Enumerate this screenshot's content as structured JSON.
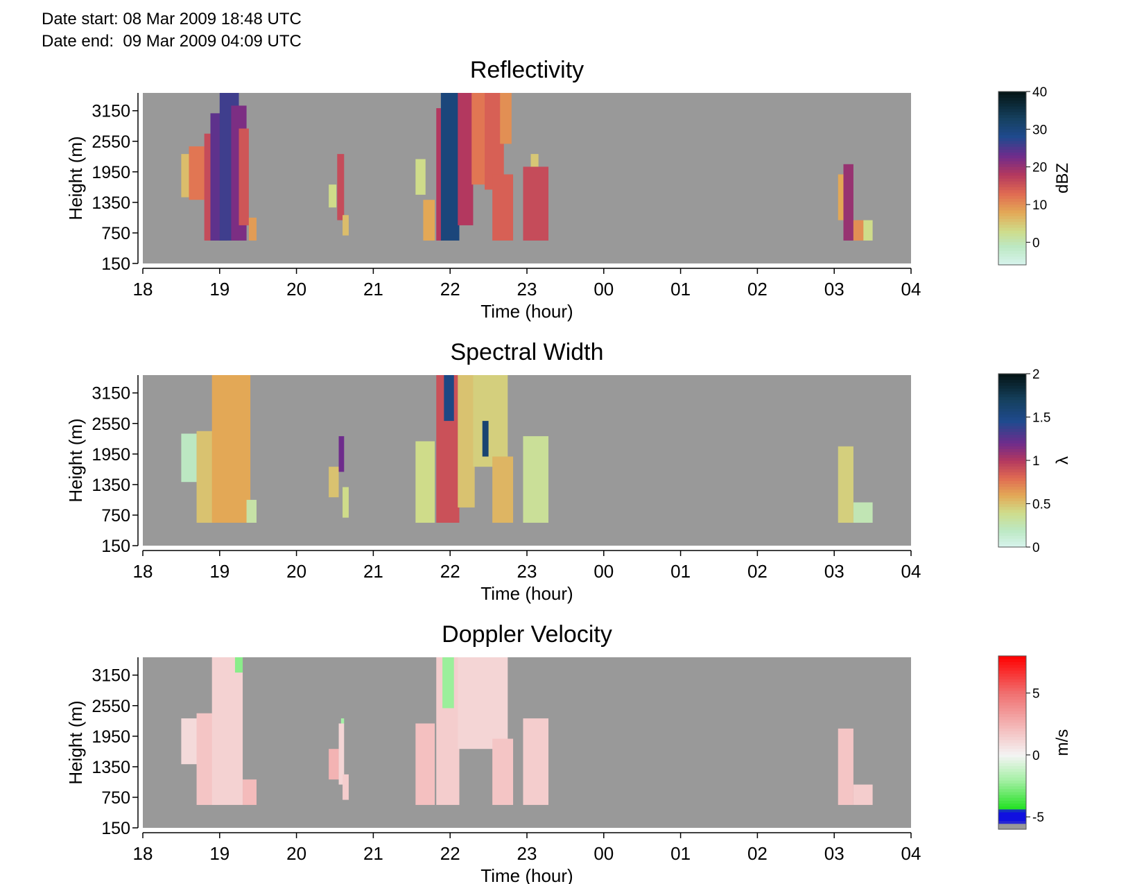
{
  "header": {
    "date_start": "Date start: 08 Mar 2009 18:48 UTC",
    "date_end": "Date end:  09 Mar 2009 04:09 UTC"
  },
  "colors": {
    "background_no_data": "#999999"
  },
  "chart_data": [
    {
      "type": "heatmap",
      "title": "Reflectivity",
      "xlabel": "Time (hour)",
      "ylabel": "Height (m)",
      "x_ticks": [
        "18",
        "19",
        "20",
        "21",
        "22",
        "23",
        "00",
        "01",
        "02",
        "03",
        "04"
      ],
      "y_ticks": [
        "150",
        "750",
        "1350",
        "1950",
        "2550",
        "3150"
      ],
      "y_tick_values": [
        150,
        750,
        1350,
        1950,
        2550,
        3150
      ],
      "xlim": [
        18,
        28
      ],
      "ylim": [
        150,
        3500
      ],
      "colorbar": {
        "label": "dBZ",
        "range": [
          -6,
          40
        ],
        "ticks": [
          "0",
          "10",
          "20",
          "30",
          "40"
        ],
        "tick_values": [
          0,
          10,
          20,
          30,
          40
        ],
        "stops": [
          {
            "v": -6,
            "c": "#d8f4ee"
          },
          {
            "v": -1,
            "c": "#bce8c2"
          },
          {
            "v": 3,
            "c": "#cfdc8a"
          },
          {
            "v": 8,
            "c": "#e3a856"
          },
          {
            "v": 13,
            "c": "#e06a52"
          },
          {
            "v": 18,
            "c": "#b3385f"
          },
          {
            "v": 23,
            "c": "#6e2c8c"
          },
          {
            "v": 28,
            "c": "#1f4a8e"
          },
          {
            "v": 33,
            "c": "#15405e"
          },
          {
            "v": 40,
            "c": "#041414"
          }
        ]
      },
      "cells": [
        {
          "t0": 18.5,
          "t1": 18.65,
          "h0": 1450,
          "h1": 2300,
          "v": 6
        },
        {
          "t0": 18.6,
          "t1": 18.85,
          "h0": 1400,
          "h1": 2450,
          "v": 12
        },
        {
          "t0": 18.8,
          "t1": 18.95,
          "h0": 600,
          "h1": 2700,
          "v": 16
        },
        {
          "t0": 18.88,
          "t1": 19.1,
          "h0": 600,
          "h1": 3100,
          "v": 24
        },
        {
          "t0": 19.0,
          "t1": 19.25,
          "h0": 600,
          "h1": 3500,
          "v": 26
        },
        {
          "t0": 19.15,
          "t1": 19.35,
          "h0": 600,
          "h1": 3250,
          "v": 22
        },
        {
          "t0": 19.25,
          "t1": 19.38,
          "h0": 900,
          "h1": 2800,
          "v": 15
        },
        {
          "t0": 19.38,
          "t1": 19.48,
          "h0": 600,
          "h1": 1050,
          "v": 9
        },
        {
          "t0": 20.42,
          "t1": 20.52,
          "h0": 1250,
          "h1": 1700,
          "v": 3
        },
        {
          "t0": 20.53,
          "t1": 20.62,
          "h0": 1000,
          "h1": 2300,
          "v": 16
        },
        {
          "t0": 20.6,
          "t1": 20.68,
          "h0": 700,
          "h1": 1100,
          "v": 6
        },
        {
          "t0": 21.55,
          "t1": 21.68,
          "h0": 1500,
          "h1": 2200,
          "v": 3
        },
        {
          "t0": 21.65,
          "t1": 21.8,
          "h0": 600,
          "h1": 1400,
          "v": 8
        },
        {
          "t0": 21.82,
          "t1": 21.92,
          "h0": 600,
          "h1": 3200,
          "v": 18
        },
        {
          "t0": 21.88,
          "t1": 22.12,
          "h0": 600,
          "h1": 3500,
          "v": 30
        },
        {
          "t0": 22.1,
          "t1": 22.3,
          "h0": 900,
          "h1": 3500,
          "v": 18
        },
        {
          "t0": 22.28,
          "t1": 22.5,
          "h0": 1700,
          "h1": 3500,
          "v": 12
        },
        {
          "t0": 22.45,
          "t1": 22.7,
          "h0": 1600,
          "h1": 3500,
          "v": 14
        },
        {
          "t0": 22.55,
          "t1": 22.82,
          "h0": 600,
          "h1": 1900,
          "v": 14
        },
        {
          "t0": 22.65,
          "t1": 22.8,
          "h0": 2500,
          "h1": 3500,
          "v": 10
        },
        {
          "t0": 22.95,
          "t1": 23.28,
          "h0": 600,
          "h1": 2050,
          "v": 16
        },
        {
          "t0": 23.05,
          "t1": 23.15,
          "h0": 2050,
          "h1": 2300,
          "v": 5
        },
        {
          "t0": 27.05,
          "t1": 27.15,
          "h0": 1000,
          "h1": 1900,
          "v": 8
        },
        {
          "t0": 27.12,
          "t1": 27.25,
          "h0": 600,
          "h1": 2100,
          "v": 20
        },
        {
          "t0": 27.25,
          "t1": 27.4,
          "h0": 600,
          "h1": 1000,
          "v": 10
        },
        {
          "t0": 27.38,
          "t1": 27.5,
          "h0": 600,
          "h1": 1000,
          "v": 3
        }
      ]
    },
    {
      "type": "heatmap",
      "title": "Spectral Width",
      "xlabel": "Time (hour)",
      "ylabel": "Height (m)",
      "x_ticks": [
        "18",
        "19",
        "20",
        "21",
        "22",
        "23",
        "00",
        "01",
        "02",
        "03",
        "04"
      ],
      "y_ticks": [
        "150",
        "750",
        "1350",
        "1950",
        "2550",
        "3150"
      ],
      "y_tick_values": [
        150,
        750,
        1350,
        1950,
        2550,
        3150
      ],
      "xlim": [
        18,
        28
      ],
      "ylim": [
        150,
        3500
      ],
      "colorbar": {
        "label": "λ",
        "range": [
          0,
          2
        ],
        "ticks": [
          "0",
          "0.5",
          "1",
          "1.5",
          "2"
        ],
        "tick_values": [
          0,
          0.5,
          1,
          1.5,
          2
        ],
        "stops": [
          {
            "v": 0,
            "c": "#d8f4ee"
          },
          {
            "v": 0.2,
            "c": "#bce8c2"
          },
          {
            "v": 0.4,
            "c": "#cfdc8a"
          },
          {
            "v": 0.6,
            "c": "#e3a856"
          },
          {
            "v": 0.8,
            "c": "#e06a52"
          },
          {
            "v": 1.0,
            "c": "#b3385f"
          },
          {
            "v": 1.2,
            "c": "#6e2c8c"
          },
          {
            "v": 1.45,
            "c": "#1f4a8e"
          },
          {
            "v": 1.7,
            "c": "#15405e"
          },
          {
            "v": 2.0,
            "c": "#041414"
          }
        ]
      },
      "cells": [
        {
          "t0": 18.5,
          "t1": 18.7,
          "h0": 1400,
          "h1": 2350,
          "v": 0.2
        },
        {
          "t0": 18.7,
          "t1": 18.95,
          "h0": 600,
          "h1": 2400,
          "v": 0.5
        },
        {
          "t0": 18.9,
          "t1": 19.4,
          "h0": 600,
          "h1": 3500,
          "v": 0.6
        },
        {
          "t0": 19.35,
          "t1": 19.48,
          "h0": 600,
          "h1": 1050,
          "v": 0.3
        },
        {
          "t0": 20.42,
          "t1": 20.55,
          "h0": 1100,
          "h1": 1700,
          "v": 0.5
        },
        {
          "t0": 20.55,
          "t1": 20.62,
          "h0": 1600,
          "h1": 2300,
          "v": 1.2
        },
        {
          "t0": 20.6,
          "t1": 20.68,
          "h0": 700,
          "h1": 1300,
          "v": 0.4
        },
        {
          "t0": 21.55,
          "t1": 21.8,
          "h0": 600,
          "h1": 2200,
          "v": 0.4
        },
        {
          "t0": 21.82,
          "t1": 22.12,
          "h0": 600,
          "h1": 3500,
          "v": 0.9
        },
        {
          "t0": 21.92,
          "t1": 22.05,
          "h0": 2600,
          "h1": 3500,
          "v": 1.5
        },
        {
          "t0": 22.1,
          "t1": 22.32,
          "h0": 900,
          "h1": 3500,
          "v": 0.5
        },
        {
          "t0": 22.3,
          "t1": 22.75,
          "h0": 1700,
          "h1": 3500,
          "v": 0.45
        },
        {
          "t0": 22.42,
          "t1": 22.5,
          "h0": 1900,
          "h1": 2600,
          "v": 1.6
        },
        {
          "t0": 22.55,
          "t1": 22.82,
          "h0": 600,
          "h1": 1900,
          "v": 0.55
        },
        {
          "t0": 22.95,
          "t1": 23.28,
          "h0": 600,
          "h1": 2300,
          "v": 0.35
        },
        {
          "t0": 27.05,
          "t1": 27.25,
          "h0": 600,
          "h1": 2100,
          "v": 0.45
        },
        {
          "t0": 27.25,
          "t1": 27.5,
          "h0": 600,
          "h1": 1000,
          "v": 0.25
        }
      ]
    },
    {
      "type": "heatmap",
      "title": "Doppler Velocity",
      "xlabel": "Time (hour)",
      "ylabel": "Height (m)",
      "x_ticks": [
        "18",
        "19",
        "20",
        "21",
        "22",
        "23",
        "00",
        "01",
        "02",
        "03",
        "04"
      ],
      "y_ticks": [
        "150",
        "750",
        "1350",
        "1950",
        "2550",
        "3150"
      ],
      "y_tick_values": [
        150,
        750,
        1350,
        1950,
        2550,
        3150
      ],
      "xlim": [
        18,
        28
      ],
      "ylim": [
        150,
        3500
      ],
      "colorbar": {
        "label": "m/s",
        "range": [
          -6,
          8
        ],
        "ticks": [
          "-5",
          "0",
          "5"
        ],
        "tick_values": [
          -5,
          0,
          5
        ],
        "stops": [
          {
            "v": -6,
            "c": "#999999"
          },
          {
            "v": -5.5,
            "c": "#999999"
          },
          {
            "v": -5.4,
            "c": "#1010e0"
          },
          {
            "v": -4.5,
            "c": "#1010e0"
          },
          {
            "v": -4.4,
            "c": "#20e020"
          },
          {
            "v": -2,
            "c": "#a6f0a6"
          },
          {
            "v": 0,
            "c": "#f4f4f4"
          },
          {
            "v": 2,
            "c": "#f4c0c0"
          },
          {
            "v": 5,
            "c": "#f07070"
          },
          {
            "v": 8,
            "c": "#ff0000"
          }
        ]
      },
      "cells": [
        {
          "t0": 18.5,
          "t1": 18.75,
          "h0": 1400,
          "h1": 2300,
          "v": 1.0
        },
        {
          "t0": 18.7,
          "t1": 19.0,
          "h0": 600,
          "h1": 2400,
          "v": 1.8
        },
        {
          "t0": 18.9,
          "t1": 19.3,
          "h0": 600,
          "h1": 3500,
          "v": 1.3
        },
        {
          "t0": 19.2,
          "t1": 19.3,
          "h0": 3200,
          "h1": 3500,
          "v": -2.5
        },
        {
          "t0": 19.3,
          "t1": 19.48,
          "h0": 600,
          "h1": 1100,
          "v": 2.2
        },
        {
          "t0": 20.42,
          "t1": 20.55,
          "h0": 1100,
          "h1": 1700,
          "v": 2.5
        },
        {
          "t0": 20.55,
          "t1": 20.62,
          "h0": 1000,
          "h1": 2200,
          "v": 1.2
        },
        {
          "t0": 20.58,
          "t1": 20.62,
          "h0": 2200,
          "h1": 2300,
          "v": -2
        },
        {
          "t0": 20.6,
          "t1": 20.68,
          "h0": 700,
          "h1": 1200,
          "v": 1.5
        },
        {
          "t0": 21.55,
          "t1": 21.8,
          "h0": 600,
          "h1": 2200,
          "v": 2.0
        },
        {
          "t0": 21.82,
          "t1": 22.12,
          "h0": 600,
          "h1": 3500,
          "v": 1.5
        },
        {
          "t0": 21.9,
          "t1": 22.05,
          "h0": 2500,
          "h1": 3500,
          "v": -2.2
        },
        {
          "t0": 22.1,
          "t1": 22.75,
          "h0": 1700,
          "h1": 3500,
          "v": 1.2
        },
        {
          "t0": 22.55,
          "t1": 22.82,
          "h0": 600,
          "h1": 1900,
          "v": 1.8
        },
        {
          "t0": 22.95,
          "t1": 23.28,
          "h0": 600,
          "h1": 2300,
          "v": 1.5
        },
        {
          "t0": 27.05,
          "t1": 27.25,
          "h0": 600,
          "h1": 2100,
          "v": 1.8
        },
        {
          "t0": 27.25,
          "t1": 27.5,
          "h0": 600,
          "h1": 1000,
          "v": 1.5
        }
      ]
    }
  ]
}
